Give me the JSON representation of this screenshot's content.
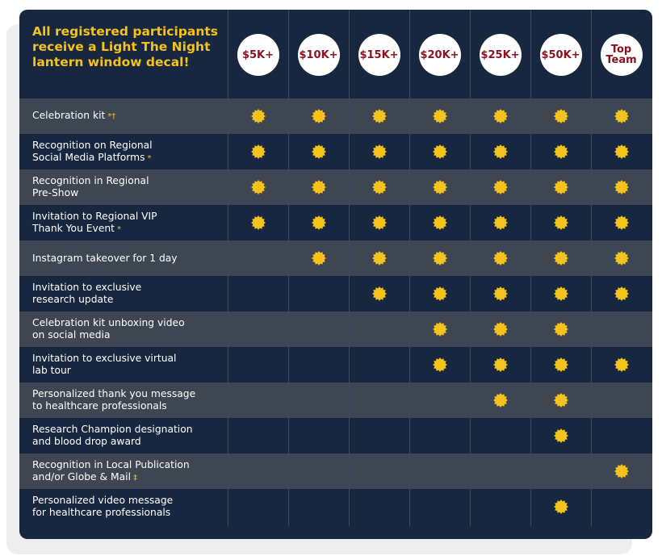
{
  "headline": "All registered participants receive a Light The Night lantern window decal!",
  "tiers": [
    "$5K+",
    "$10K+",
    "$15K+",
    "$20K+",
    "$25K+",
    "$50K+",
    "Top Team"
  ],
  "colors": {
    "card": "#16273f",
    "row_alt": "#3e4652",
    "accent": "#f6c21c",
    "tier_text": "#8c1220"
  },
  "icon": "gold-star-badge-icon",
  "rows": [
    {
      "label": "Celebration kit",
      "mark": "*†",
      "tiers": [
        true,
        true,
        true,
        true,
        true,
        true,
        true
      ]
    },
    {
      "label": "Recognition on Regional\nSocial Media Platforms",
      "mark": "*",
      "tiers": [
        true,
        true,
        true,
        true,
        true,
        true,
        true
      ]
    },
    {
      "label": "Recognition in Regional\nPre-Show",
      "mark": "",
      "tiers": [
        true,
        true,
        true,
        true,
        true,
        true,
        true
      ]
    },
    {
      "label": "Invitation to Regional VIP\nThank You Event",
      "mark": "*",
      "tiers": [
        true,
        true,
        true,
        true,
        true,
        true,
        true
      ]
    },
    {
      "label": "Instagram takeover for 1 day",
      "mark": "",
      "tiers": [
        false,
        true,
        true,
        true,
        true,
        true,
        true
      ]
    },
    {
      "label": "Invitation to exclusive\nresearch update",
      "mark": "",
      "tiers": [
        false,
        false,
        true,
        true,
        true,
        true,
        true
      ]
    },
    {
      "label": "Celebration kit unboxing video\non social media",
      "mark": "",
      "tiers": [
        false,
        false,
        false,
        true,
        true,
        true,
        false
      ]
    },
    {
      "label": "Invitation to exclusive virtual\nlab tour",
      "mark": "",
      "tiers": [
        false,
        false,
        false,
        true,
        true,
        true,
        true
      ]
    },
    {
      "label": "Personalized thank you message\nto healthcare professionals",
      "mark": "",
      "tiers": [
        false,
        false,
        false,
        false,
        true,
        true,
        false
      ]
    },
    {
      "label": "Research Champion designation\nand blood drop award",
      "mark": "",
      "tiers": [
        false,
        false,
        false,
        false,
        false,
        true,
        false
      ]
    },
    {
      "label": "Recognition in Local Publication\nand/or Globe & Mail",
      "mark": "‡",
      "tiers": [
        false,
        false,
        false,
        false,
        false,
        false,
        true
      ]
    },
    {
      "label": "Personalized video message\nfor healthcare professionals",
      "mark": "",
      "tiers": [
        false,
        false,
        false,
        false,
        false,
        true,
        false
      ]
    }
  ]
}
